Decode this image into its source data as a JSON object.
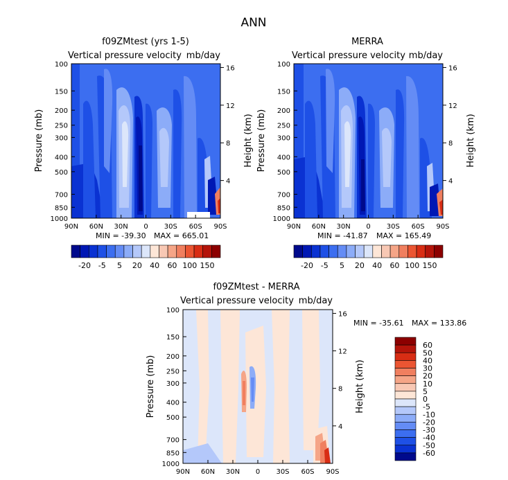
{
  "page_title": "ANN",
  "chart_data": [
    {
      "type": "heatmap",
      "title": "f09ZMtest (yrs 1-5)",
      "subtitle_left": "Vertical pressure velocity",
      "subtitle_right": "mb/day",
      "ylabel": "Pressure (mb)",
      "ylabel_right": "Height (km)",
      "x_ticks": [
        "90N",
        "60N",
        "30N",
        "0",
        "30S",
        "60S",
        "90S"
      ],
      "y_ticks": [
        "100",
        "150",
        "200",
        "250",
        "300",
        "400",
        "500",
        "700",
        "850",
        "1000"
      ],
      "y2_ticks": [
        "16",
        "12",
        "8",
        "4"
      ],
      "min_label": "MIN = -39.30",
      "max_label": "MAX = 665.01",
      "colorbar": {
        "labels": [
          "-20",
          "-5",
          "5",
          "20",
          "40",
          "60",
          "100",
          "150"
        ],
        "colors": [
          "#000a8c",
          "#0018b4",
          "#0a32d2",
          "#1e50e6",
          "#3c6ef0",
          "#648cf5",
          "#8cacf8",
          "#b4c8fa",
          "#dce6fa",
          "#fde6d7",
          "#f8c8b4",
          "#f5a587",
          "#f07f5f",
          "#eb5532",
          "#d82d14",
          "#b4140a",
          "#8c0000"
        ]
      }
    },
    {
      "type": "heatmap",
      "title": "MERRA",
      "subtitle_left": "Vertical pressure velocity",
      "subtitle_right": "mb/day",
      "ylabel": "Pressure (mb)",
      "ylabel_right": "Height (km)",
      "x_ticks": [
        "90N",
        "60N",
        "30N",
        "0",
        "30S",
        "60S",
        "90S"
      ],
      "y_ticks": [
        "100",
        "150",
        "200",
        "250",
        "300",
        "400",
        "500",
        "700",
        "850",
        "1000"
      ],
      "y2_ticks": [
        "16",
        "12",
        "8",
        "4"
      ],
      "min_label": "MIN = -41.87",
      "max_label": "MAX = 165.49",
      "colorbar": {
        "labels": [
          "-20",
          "-5",
          "5",
          "20",
          "40",
          "60",
          "100",
          "150"
        ]
      }
    },
    {
      "type": "heatmap",
      "title": "f09ZMtest - MERRA",
      "subtitle_left": "Vertical pressure velocity",
      "subtitle_right": "mb/day",
      "ylabel": "Pressure (mb)",
      "ylabel_right": "Height (km)",
      "x_ticks": [
        "90N",
        "60N",
        "30N",
        "0",
        "30S",
        "60S",
        "90S"
      ],
      "y_ticks": [
        "100",
        "150",
        "200",
        "250",
        "300",
        "400",
        "500",
        "700",
        "850",
        "1000"
      ],
      "y2_ticks": [
        "16",
        "12",
        "8",
        "4"
      ],
      "min_label": "MIN = -35.61",
      "max_label": "MAX = 133.86",
      "colorbar": {
        "labels": [
          "60",
          "50",
          "40",
          "30",
          "20",
          "10",
          "5",
          "0",
          "-5",
          "-10",
          "-20",
          "-30",
          "-40",
          "-50",
          "-60"
        ],
        "colors": [
          "#8c0000",
          "#b4140a",
          "#d82d14",
          "#eb5532",
          "#f07f5f",
          "#f5a587",
          "#f8c8b4",
          "#fde6d7",
          "#dce6fa",
          "#b4c8fa",
          "#8cacf8",
          "#648cf5",
          "#3c6ef0",
          "#1e50e6",
          "#0a32d2",
          "#000a8c"
        ]
      }
    }
  ]
}
